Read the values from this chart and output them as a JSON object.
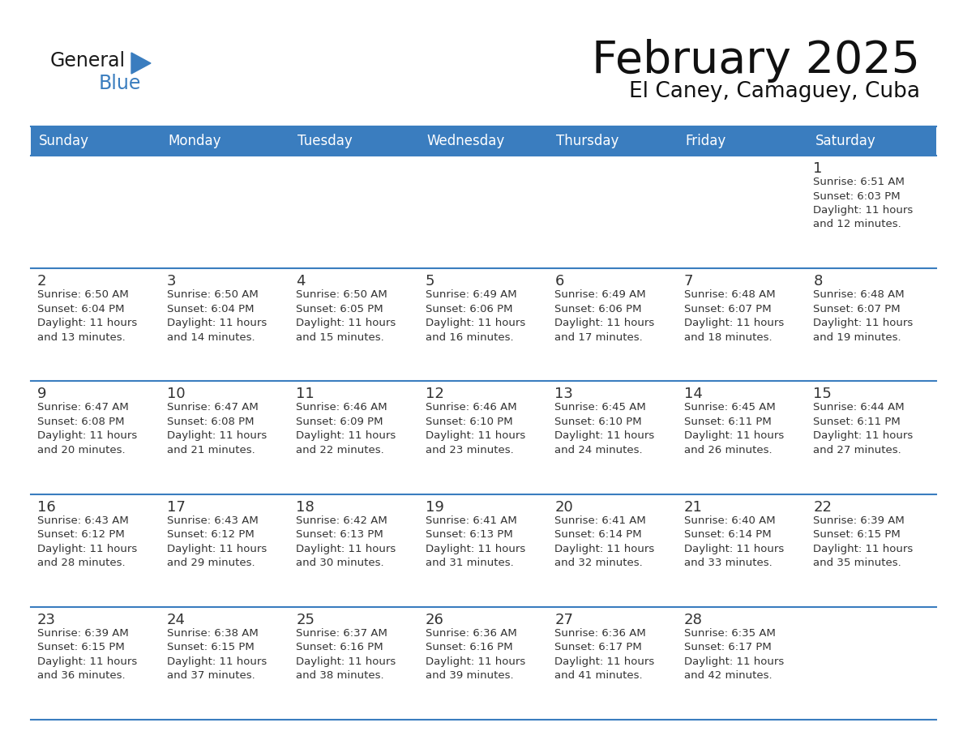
{
  "title": "February 2025",
  "subtitle": "El Caney, Camaguey, Cuba",
  "days_of_week": [
    "Sunday",
    "Monday",
    "Tuesday",
    "Wednesday",
    "Thursday",
    "Friday",
    "Saturday"
  ],
  "header_bg": "#3a7dbf",
  "header_text": "#ffffff",
  "cell_bg": "#ffffff",
  "separator_color": "#3a7dbf",
  "text_color": "#333333",
  "calendar_data": [
    [
      null,
      null,
      null,
      null,
      null,
      null,
      {
        "day": 1,
        "sunrise": "6:51 AM",
        "sunset": "6:03 PM",
        "daylight": "11 hours and 12 minutes."
      }
    ],
    [
      {
        "day": 2,
        "sunrise": "6:50 AM",
        "sunset": "6:04 PM",
        "daylight": "11 hours and 13 minutes."
      },
      {
        "day": 3,
        "sunrise": "6:50 AM",
        "sunset": "6:04 PM",
        "daylight": "11 hours and 14 minutes."
      },
      {
        "day": 4,
        "sunrise": "6:50 AM",
        "sunset": "6:05 PM",
        "daylight": "11 hours and 15 minutes."
      },
      {
        "day": 5,
        "sunrise": "6:49 AM",
        "sunset": "6:06 PM",
        "daylight": "11 hours and 16 minutes."
      },
      {
        "day": 6,
        "sunrise": "6:49 AM",
        "sunset": "6:06 PM",
        "daylight": "11 hours and 17 minutes."
      },
      {
        "day": 7,
        "sunrise": "6:48 AM",
        "sunset": "6:07 PM",
        "daylight": "11 hours and 18 minutes."
      },
      {
        "day": 8,
        "sunrise": "6:48 AM",
        "sunset": "6:07 PM",
        "daylight": "11 hours and 19 minutes."
      }
    ],
    [
      {
        "day": 9,
        "sunrise": "6:47 AM",
        "sunset": "6:08 PM",
        "daylight": "11 hours and 20 minutes."
      },
      {
        "day": 10,
        "sunrise": "6:47 AM",
        "sunset": "6:08 PM",
        "daylight": "11 hours and 21 minutes."
      },
      {
        "day": 11,
        "sunrise": "6:46 AM",
        "sunset": "6:09 PM",
        "daylight": "11 hours and 22 minutes."
      },
      {
        "day": 12,
        "sunrise": "6:46 AM",
        "sunset": "6:10 PM",
        "daylight": "11 hours and 23 minutes."
      },
      {
        "day": 13,
        "sunrise": "6:45 AM",
        "sunset": "6:10 PM",
        "daylight": "11 hours and 24 minutes."
      },
      {
        "day": 14,
        "sunrise": "6:45 AM",
        "sunset": "6:11 PM",
        "daylight": "11 hours and 26 minutes."
      },
      {
        "day": 15,
        "sunrise": "6:44 AM",
        "sunset": "6:11 PM",
        "daylight": "11 hours and 27 minutes."
      }
    ],
    [
      {
        "day": 16,
        "sunrise": "6:43 AM",
        "sunset": "6:12 PM",
        "daylight": "11 hours and 28 minutes."
      },
      {
        "day": 17,
        "sunrise": "6:43 AM",
        "sunset": "6:12 PM",
        "daylight": "11 hours and 29 minutes."
      },
      {
        "day": 18,
        "sunrise": "6:42 AM",
        "sunset": "6:13 PM",
        "daylight": "11 hours and 30 minutes."
      },
      {
        "day": 19,
        "sunrise": "6:41 AM",
        "sunset": "6:13 PM",
        "daylight": "11 hours and 31 minutes."
      },
      {
        "day": 20,
        "sunrise": "6:41 AM",
        "sunset": "6:14 PM",
        "daylight": "11 hours and 32 minutes."
      },
      {
        "day": 21,
        "sunrise": "6:40 AM",
        "sunset": "6:14 PM",
        "daylight": "11 hours and 33 minutes."
      },
      {
        "day": 22,
        "sunrise": "6:39 AM",
        "sunset": "6:15 PM",
        "daylight": "11 hours and 35 minutes."
      }
    ],
    [
      {
        "day": 23,
        "sunrise": "6:39 AM",
        "sunset": "6:15 PM",
        "daylight": "11 hours and 36 minutes."
      },
      {
        "day": 24,
        "sunrise": "6:38 AM",
        "sunset": "6:15 PM",
        "daylight": "11 hours and 37 minutes."
      },
      {
        "day": 25,
        "sunrise": "6:37 AM",
        "sunset": "6:16 PM",
        "daylight": "11 hours and 38 minutes."
      },
      {
        "day": 26,
        "sunrise": "6:36 AM",
        "sunset": "6:16 PM",
        "daylight": "11 hours and 39 minutes."
      },
      {
        "day": 27,
        "sunrise": "6:36 AM",
        "sunset": "6:17 PM",
        "daylight": "11 hours and 41 minutes."
      },
      {
        "day": 28,
        "sunrise": "6:35 AM",
        "sunset": "6:17 PM",
        "daylight": "11 hours and 42 minutes."
      },
      null
    ]
  ],
  "fig_width": 11.88,
  "fig_height": 9.18,
  "dpi": 100
}
